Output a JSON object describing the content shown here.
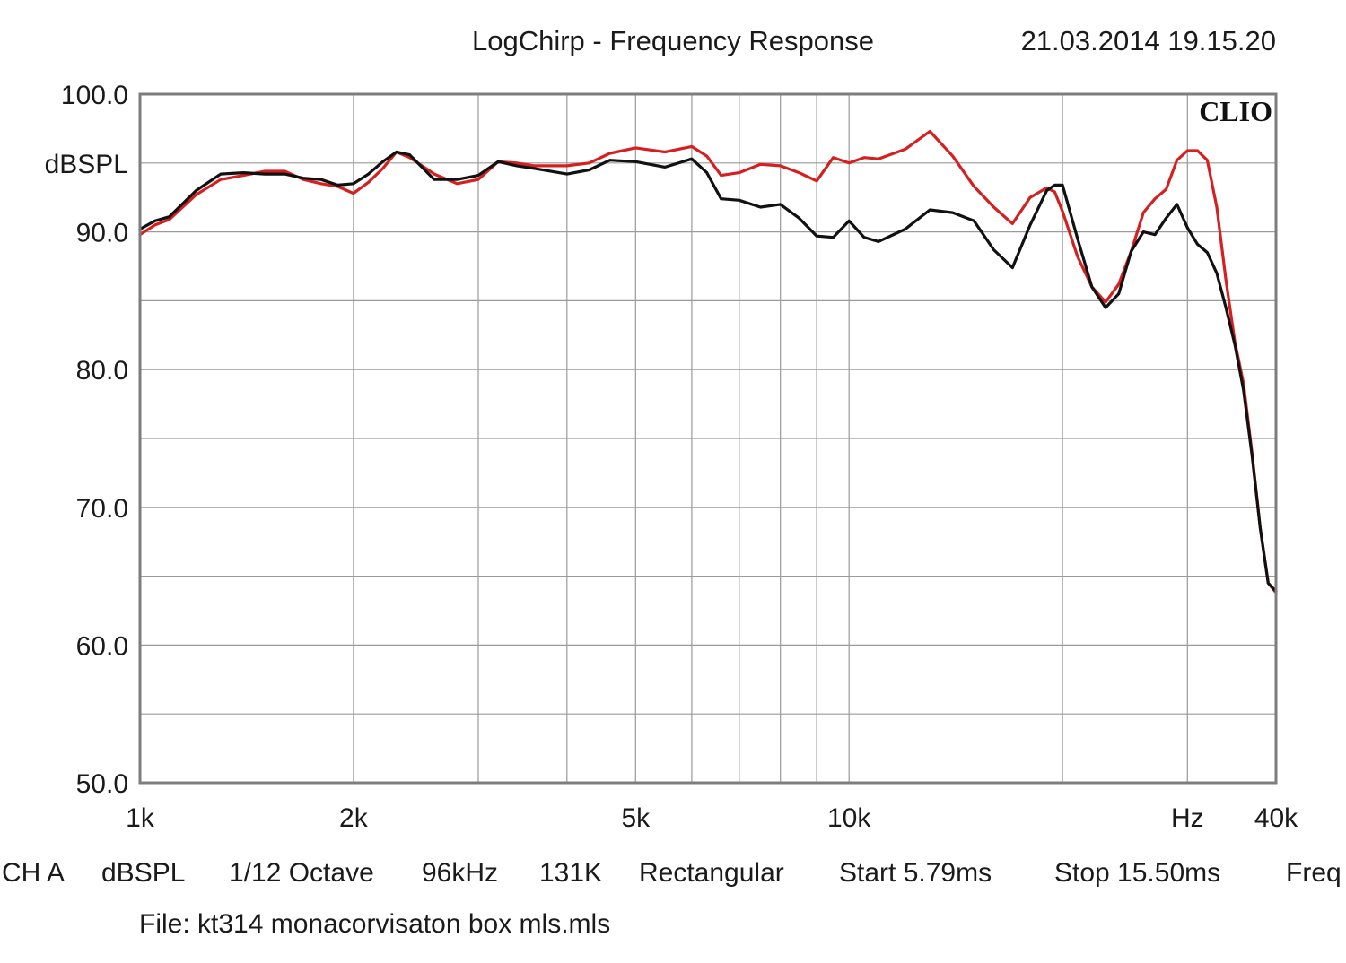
{
  "header": {
    "title": "LogChirp - Frequency Response",
    "timestamp": "21.03.2014 19.15.20",
    "logo": "CLIO"
  },
  "footer": {
    "settings": [
      "CH A",
      "dBSPL",
      "1/12 Octave",
      "96kHz",
      "131K",
      "Rectangular",
      "Start 5.79ms",
      "Stop 15.50ms",
      "Freq"
    ],
    "file": "File: kt314 monacorvisaton box mls.mls"
  },
  "colors": {
    "series_red": "#d42020",
    "series_black": "#111111",
    "grid": "#9a9a9a",
    "frame": "#7d7d7d"
  },
  "chart_data": {
    "type": "line",
    "title": "LogChirp - Frequency Response",
    "xscale": "log",
    "xlim": [
      1000,
      40000
    ],
    "ylim": [
      50,
      100
    ],
    "ylabel": "dBSPL",
    "xlabel": "Hz",
    "grid": true,
    "y_ticks": [
      {
        "value": 100,
        "label": "100.0"
      },
      {
        "value": 95,
        "label": "dBSPL"
      },
      {
        "value": 90,
        "label": "90.0"
      },
      {
        "value": 80,
        "label": "80.0"
      },
      {
        "value": 70,
        "label": "70.0"
      },
      {
        "value": 60,
        "label": "60.0"
      },
      {
        "value": 50,
        "label": "50.0"
      }
    ],
    "x_ticks": [
      {
        "value": 1000,
        "label": "1k"
      },
      {
        "value": 2000,
        "label": "2k"
      },
      {
        "value": 5000,
        "label": "5k"
      },
      {
        "value": 10000,
        "label": "10k"
      },
      {
        "value": 30000,
        "label": "Hz"
      },
      {
        "value": 40000,
        "label": "40k"
      }
    ],
    "x_grid": [
      2000,
      3000,
      4000,
      5000,
      6000,
      7000,
      8000,
      9000,
      10000,
      20000,
      30000
    ],
    "y_grid": [
      55,
      60,
      65,
      70,
      75,
      80,
      85,
      90,
      95
    ],
    "series": [
      {
        "color": "#d42020",
        "x": [
          1000,
          1050,
          1100,
          1200,
          1300,
          1400,
          1500,
          1600,
          1700,
          1800,
          1900,
          2000,
          2100,
          2200,
          2300,
          2400,
          2600,
          2800,
          3000,
          3200,
          3400,
          3600,
          4000,
          4300,
          4600,
          5000,
          5500,
          6000,
          6300,
          6600,
          7000,
          7500,
          8000,
          8500,
          9000,
          9500,
          10000,
          10500,
          11000,
          12000,
          13000,
          14000,
          15000,
          16000,
          17000,
          18000,
          19000,
          19500,
          20000,
          21000,
          22000,
          23000,
          24000,
          25000,
          26000,
          27000,
          28000,
          29000,
          30000,
          31000,
          32000,
          33000,
          34000,
          35000,
          36000,
          37000,
          38000,
          39000,
          40000
        ],
        "y": [
          89.8,
          90.5,
          90.9,
          92.7,
          93.8,
          94.1,
          94.4,
          94.4,
          93.8,
          93.5,
          93.3,
          92.8,
          93.6,
          94.6,
          95.8,
          95.4,
          94.2,
          93.5,
          93.8,
          95.1,
          95.0,
          94.8,
          94.8,
          95.0,
          95.7,
          96.1,
          95.8,
          96.2,
          95.5,
          94.1,
          94.3,
          94.9,
          94.8,
          94.3,
          93.7,
          95.4,
          95.0,
          95.4,
          95.3,
          96.0,
          97.3,
          95.5,
          93.3,
          91.8,
          90.6,
          92.5,
          93.2,
          92.9,
          91.5,
          88.2,
          86.0,
          84.9,
          86.2,
          88.6,
          91.4,
          92.4,
          93.1,
          95.2,
          95.9,
          95.9,
          95.2,
          91.8,
          86.5,
          82.0,
          79.0,
          74.0,
          68.5,
          64.5,
          63.8
        ]
      },
      {
        "color": "#111111",
        "x": [
          1000,
          1050,
          1100,
          1200,
          1300,
          1400,
          1500,
          1600,
          1700,
          1800,
          1900,
          2000,
          2100,
          2200,
          2300,
          2400,
          2600,
          2800,
          3000,
          3200,
          3400,
          3600,
          4000,
          4300,
          4600,
          5000,
          5500,
          6000,
          6300,
          6600,
          7000,
          7500,
          8000,
          8500,
          9000,
          9500,
          10000,
          10500,
          11000,
          12000,
          13000,
          14000,
          15000,
          16000,
          17000,
          18000,
          19000,
          19500,
          20000,
          21000,
          22000,
          23000,
          24000,
          25000,
          26000,
          27000,
          28000,
          29000,
          30000,
          31000,
          32000,
          33000,
          34000,
          35000,
          36000,
          37000,
          38000,
          39000,
          40000
        ],
        "y": [
          90.2,
          90.8,
          91.1,
          93.0,
          94.2,
          94.3,
          94.2,
          94.2,
          93.9,
          93.8,
          93.4,
          93.5,
          94.2,
          95.1,
          95.8,
          95.6,
          93.8,
          93.8,
          94.1,
          95.1,
          94.8,
          94.6,
          94.2,
          94.5,
          95.2,
          95.1,
          94.7,
          95.3,
          94.3,
          92.4,
          92.3,
          91.8,
          92.0,
          91.0,
          89.7,
          89.6,
          90.8,
          89.6,
          89.3,
          90.2,
          91.6,
          91.4,
          90.8,
          88.7,
          87.4,
          90.5,
          93.0,
          93.4,
          93.4,
          89.5,
          86.0,
          84.5,
          85.5,
          88.6,
          90.0,
          89.8,
          91.0,
          92.0,
          90.3,
          89.1,
          88.5,
          87.0,
          84.5,
          81.8,
          78.5,
          73.8,
          68.5,
          64.5,
          63.9
        ]
      }
    ]
  }
}
